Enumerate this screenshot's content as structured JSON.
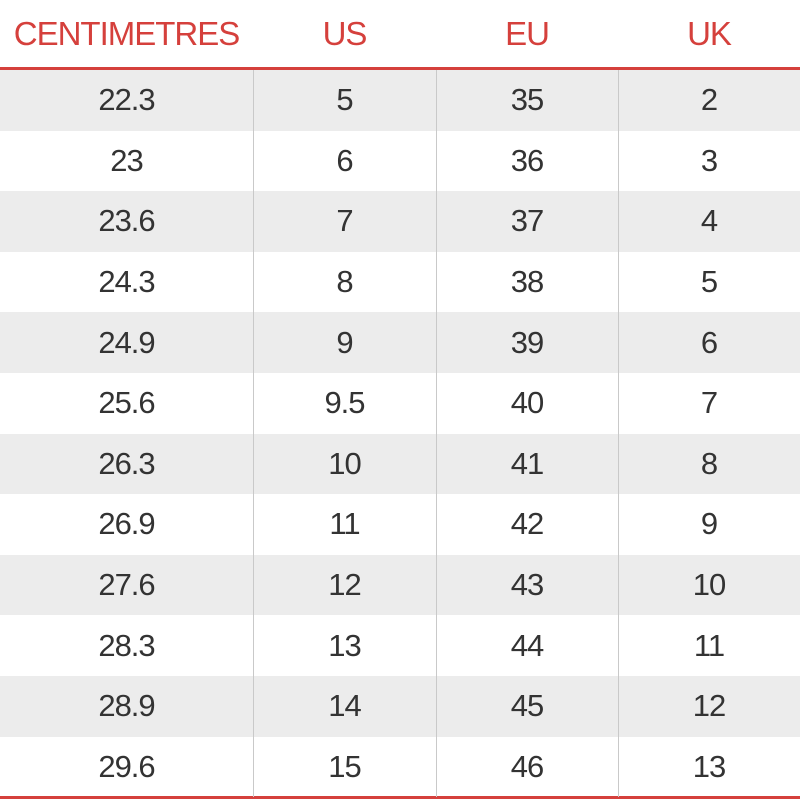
{
  "header": {
    "columns": [
      "CENTIMETRES",
      "US",
      "EU",
      "UK"
    ]
  },
  "table": {
    "rows": [
      [
        "22.3",
        "5",
        "35",
        "2"
      ],
      [
        "23",
        "6",
        "36",
        "3"
      ],
      [
        "23.6",
        "7",
        "37",
        "4"
      ],
      [
        "24.3",
        "8",
        "38",
        "5"
      ],
      [
        "24.9",
        "9",
        "39",
        "6"
      ],
      [
        "25.6",
        "9.5",
        "40",
        "7"
      ],
      [
        "26.3",
        "10",
        "41",
        "8"
      ],
      [
        "26.9",
        "11",
        "42",
        "9"
      ],
      [
        "27.6",
        "12",
        "43",
        "10"
      ],
      [
        "28.3",
        "13",
        "44",
        "11"
      ],
      [
        "28.9",
        "14",
        "45",
        "12"
      ],
      [
        "29.6",
        "15",
        "46",
        "13"
      ]
    ]
  }
}
